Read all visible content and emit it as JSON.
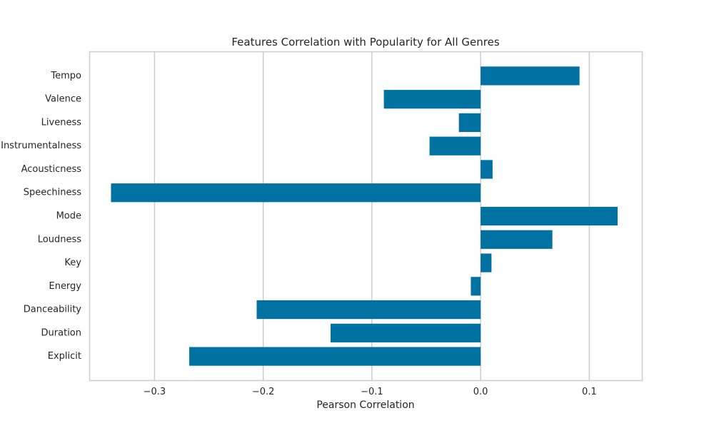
{
  "chart_data": {
    "type": "bar",
    "orientation": "horizontal",
    "title": "Features Correlation with Popularity for All Genres",
    "xlabel": "Pearson Correlation",
    "ylabel": "",
    "categories": [
      "Tempo",
      "Valence",
      "Liveness",
      "Instrumentalness",
      "Acousticness",
      "Speechiness",
      "Mode",
      "Loudness",
      "Key",
      "Energy",
      "Danceability",
      "Duration",
      "Explicit"
    ],
    "values": [
      0.091,
      -0.089,
      -0.02,
      -0.047,
      0.011,
      -0.34,
      0.126,
      0.066,
      0.01,
      -0.009,
      -0.206,
      -0.138,
      -0.268
    ],
    "xlim": [
      -0.36,
      0.149
    ],
    "xticks": [
      -0.3,
      -0.2,
      -0.1,
      0.0,
      0.1
    ],
    "xtick_labels": [
      "−0.3",
      "−0.2",
      "−0.1",
      "0.0",
      "0.1"
    ],
    "grid": "vertical",
    "legend": "none",
    "bar_color": "#0072a2",
    "grid_color": "#cccccc",
    "frame_color": "#cccccc",
    "text_color": "#262626"
  }
}
